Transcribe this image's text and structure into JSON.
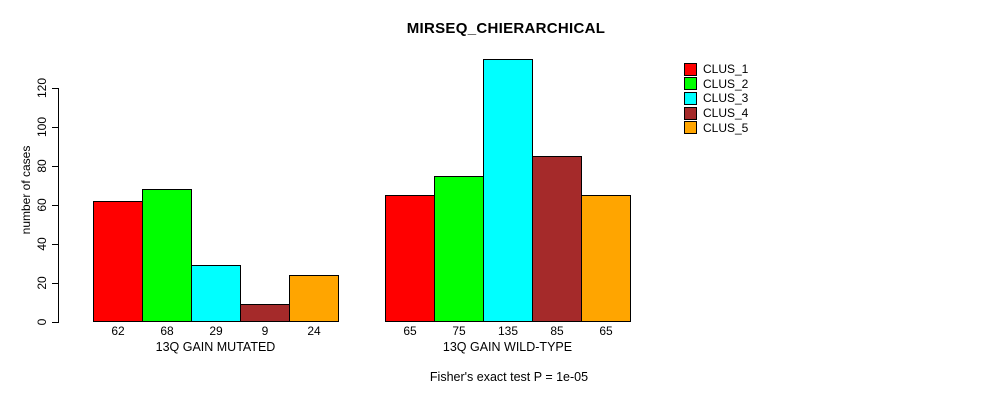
{
  "chart_data": {
    "type": "bar",
    "title": "MIRSEQ_CHIERARCHICAL",
    "ylabel": "number of cases",
    "xlabel": "",
    "categories": [
      "13Q GAIN MUTATED",
      "13Q GAIN WILD-TYPE"
    ],
    "series": [
      {
        "name": "CLUS_1",
        "color": "#ff0000",
        "values": [
          62,
          65
        ]
      },
      {
        "name": "CLUS_2",
        "color": "#00ff00",
        "values": [
          68,
          75
        ]
      },
      {
        "name": "CLUS_3",
        "color": "#00ffff",
        "values": [
          29,
          135
        ]
      },
      {
        "name": "CLUS_4",
        "color": "#a52a2a",
        "values": [
          9,
          85
        ]
      },
      {
        "name": "CLUS_5",
        "color": "#ffa500",
        "values": [
          24,
          65
        ]
      }
    ],
    "bar_value_labels": [
      [
        62,
        68,
        29,
        9,
        24
      ],
      [
        65,
        75,
        135,
        85,
        65
      ]
    ],
    "yticks": [
      0,
      20,
      40,
      60,
      80,
      100,
      120
    ],
    "ylim": [
      0,
      137
    ],
    "grid": false,
    "legend_position": "top-right",
    "annotation": "Fisher's exact test P = 1e-05"
  }
}
